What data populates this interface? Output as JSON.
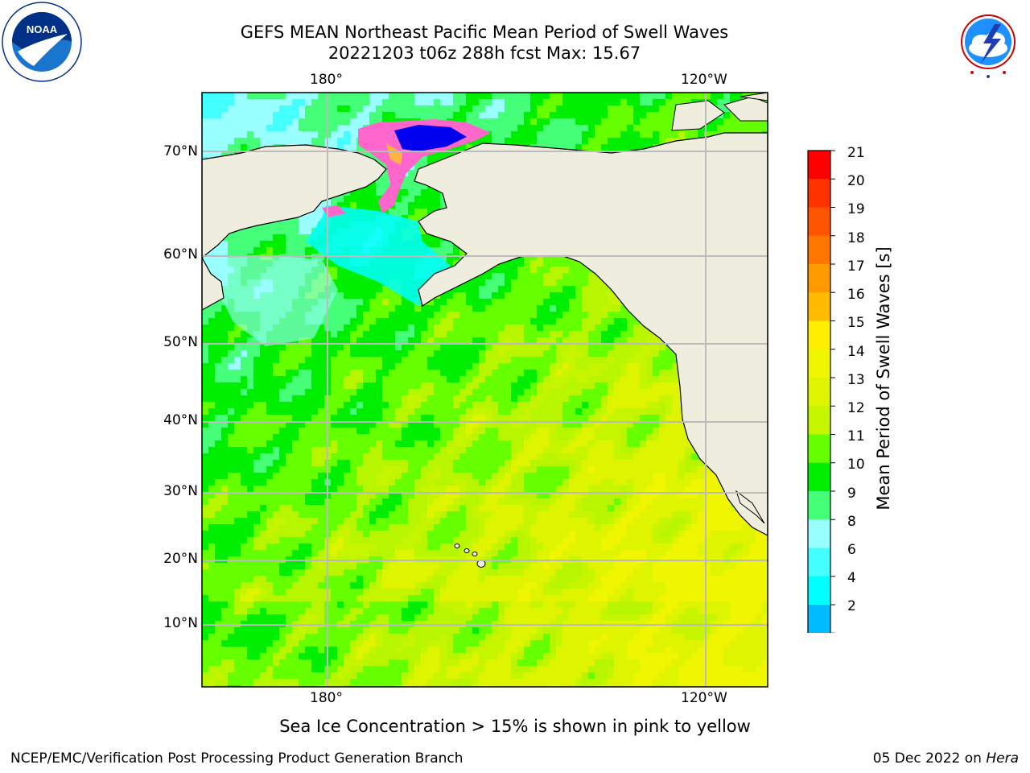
{
  "title_line1": "GEFS MEAN Northeast Pacific Mean Period of Swell Waves",
  "title_line2": "20221203 t06z 288h fcst   Max: 15.67",
  "longitude_labels": [
    "180°",
    "120°W"
  ],
  "latitude_labels": [
    "70°N",
    "60°N",
    "50°N",
    "40°N",
    "30°N",
    "20°N",
    "10°N"
  ],
  "colorbar": {
    "label": "Mean Period of Swell Waves [s]",
    "ticks": [
      "21",
      "20",
      "19",
      "18",
      "17",
      "16",
      "15",
      "14",
      "13",
      "12",
      "11",
      "10",
      "9",
      "8",
      "6",
      "4",
      "2"
    ],
    "colors": [
      "#ff0000",
      "#ff3300",
      "#ff5500",
      "#ff7700",
      "#ff9900",
      "#ffbb00",
      "#ffee00",
      "#f0f500",
      "#dff500",
      "#c6f500",
      "#66ff00",
      "#00ee00",
      "#44ff77",
      "#99ffff",
      "#44ffff",
      "#00ffff",
      "#00bbff",
      "#0066ff"
    ],
    "extend_color": "#0000ff"
  },
  "note": "Sea Ice Concentration > 15% is shown in pink to yellow",
  "footer_left": "NCEP/EMC/Verification Post Processing Product Generation Branch",
  "footer_date": "05 Dec 2022 on ",
  "footer_host": "Hera",
  "logos": {
    "left": "NOAA",
    "right": "NATIONAL WEATHER SERVICE"
  },
  "land_color": "#efedde",
  "grid_color": "#bbbbbb"
}
